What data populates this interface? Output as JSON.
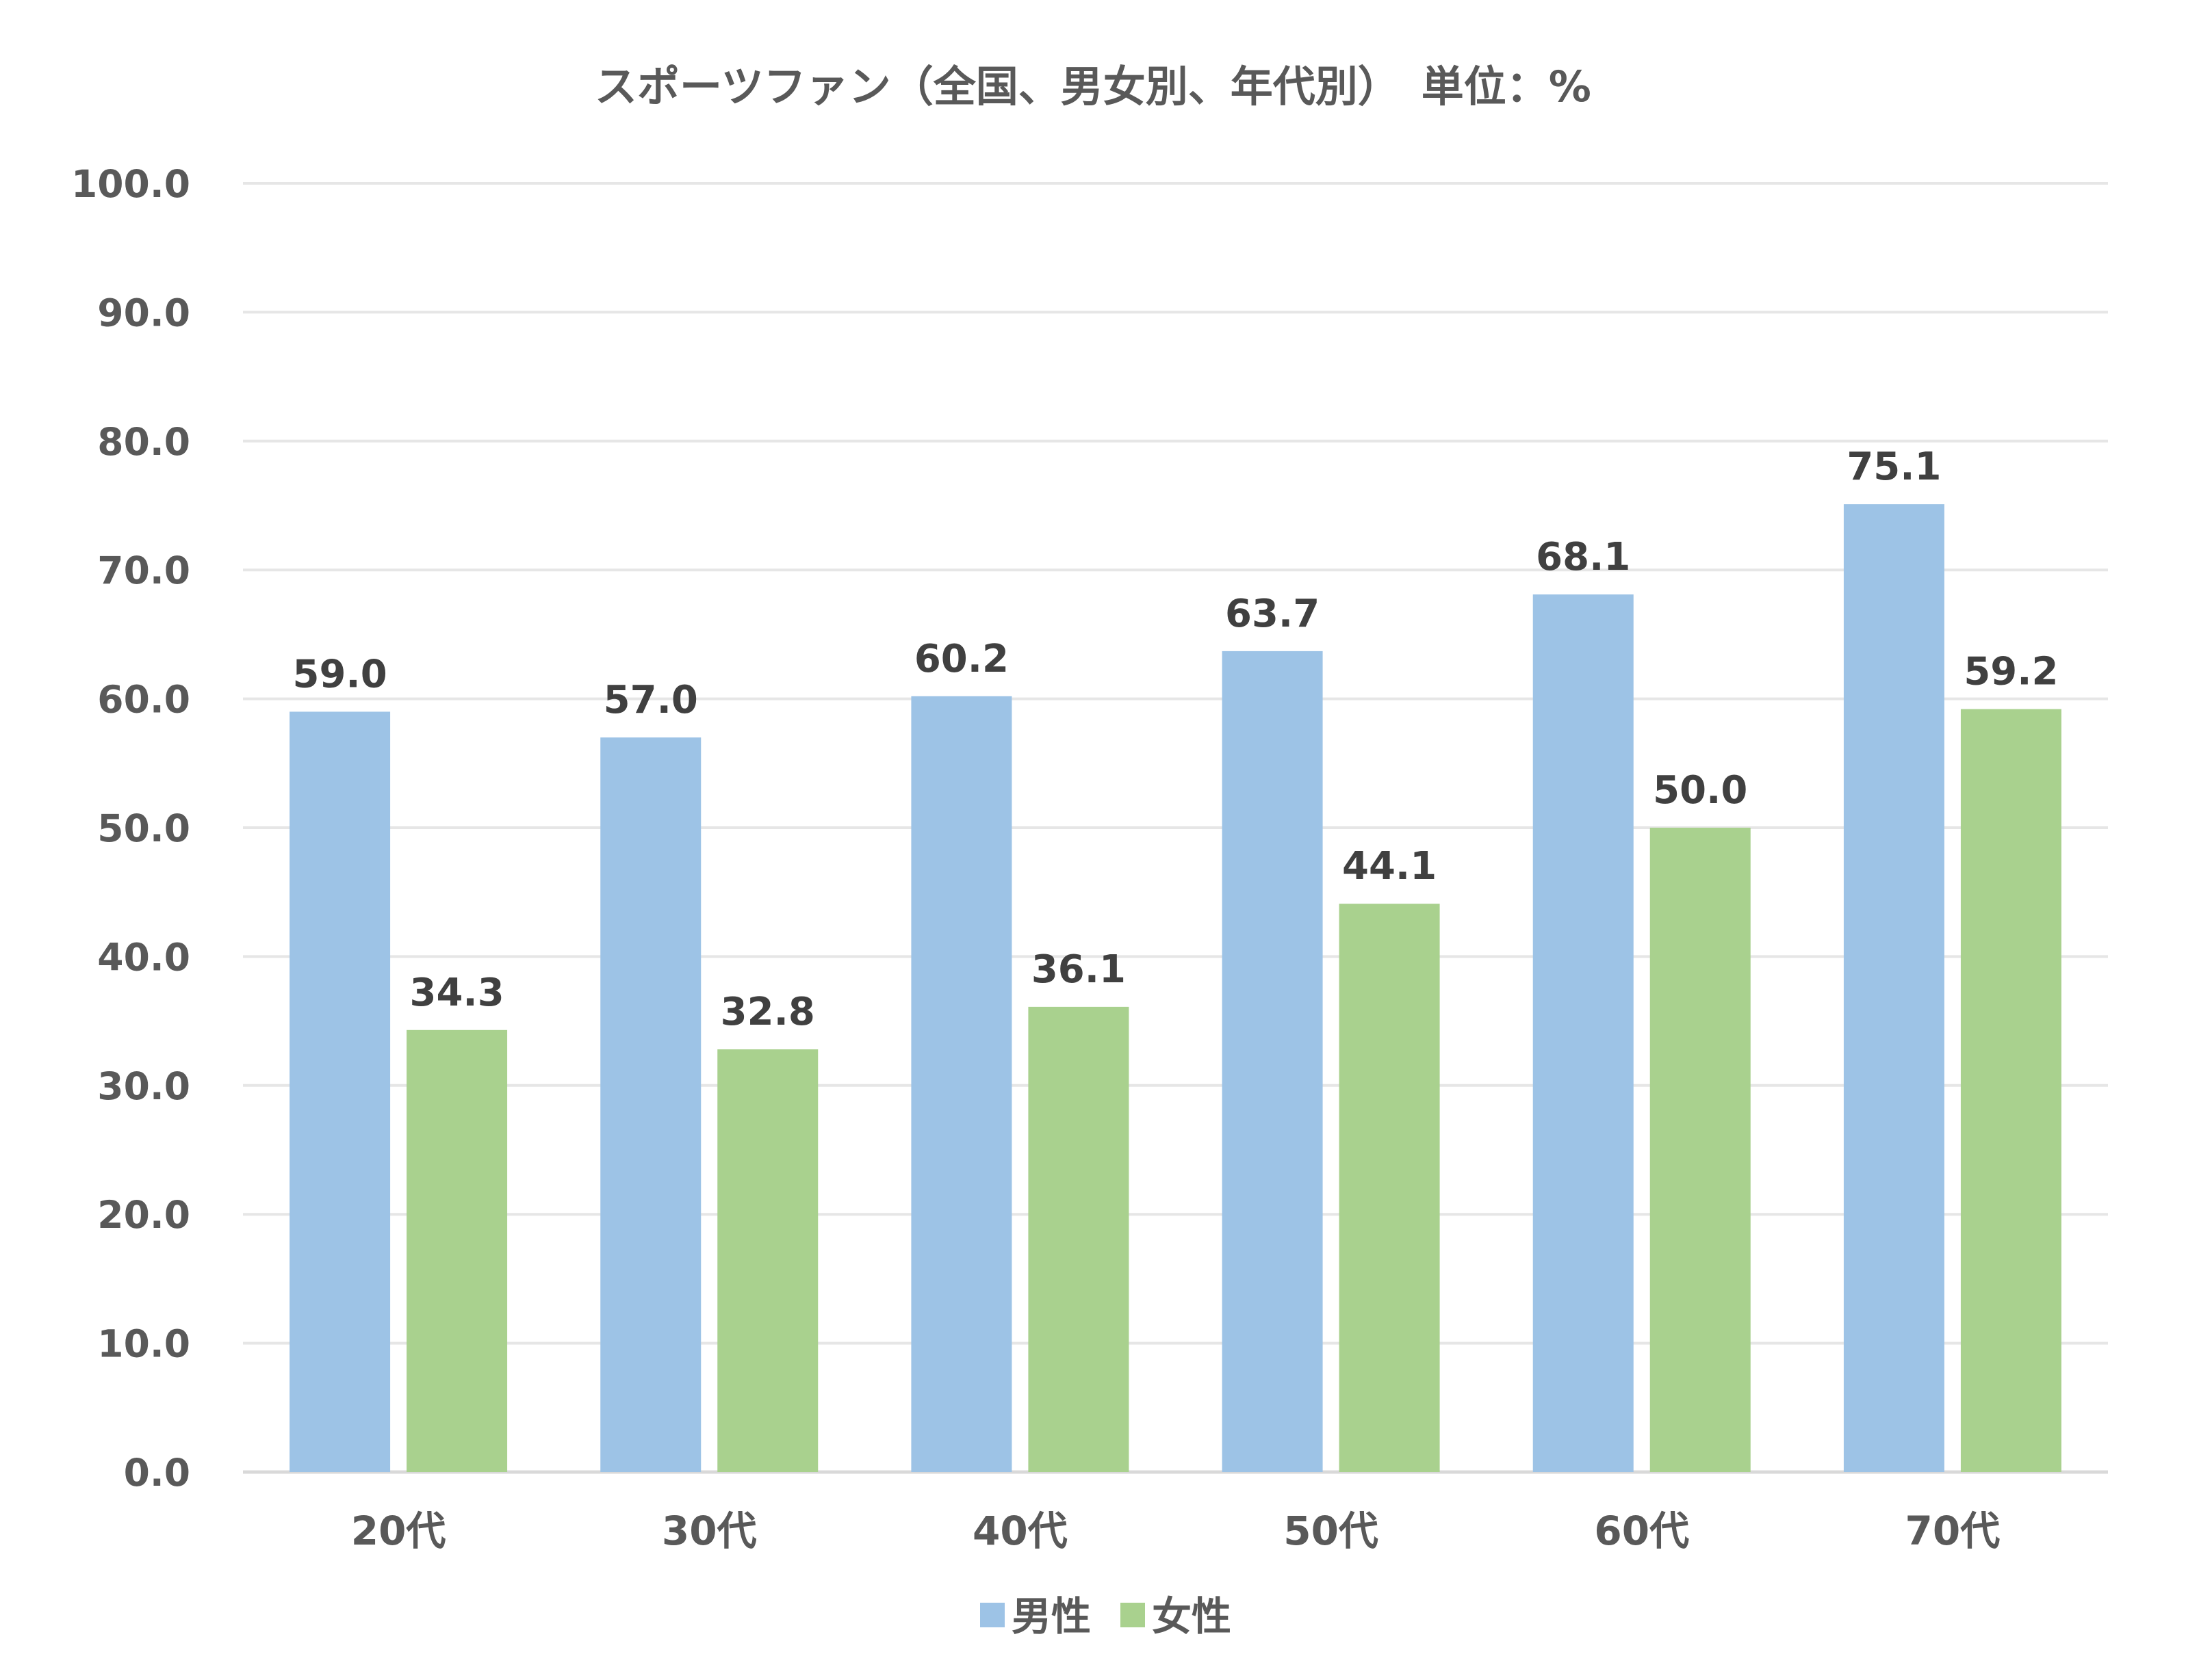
{
  "chart_data": {
    "type": "bar",
    "title": "スポーツファン（全国、男女別、年代別）　単位：%",
    "categories": [
      "20代",
      "30代",
      "40代",
      "50代",
      "60代",
      "70代"
    ],
    "series": [
      {
        "name": "男性",
        "color": "#9dc3e6",
        "values": [
          59.0,
          57.0,
          60.2,
          63.7,
          68.1,
          75.1
        ]
      },
      {
        "name": "女性",
        "color": "#a9d18e",
        "values": [
          34.3,
          32.8,
          36.1,
          44.1,
          50.0,
          59.2
        ]
      }
    ],
    "y_ticks": [
      "0.0",
      "10.0",
      "20.0",
      "30.0",
      "40.0",
      "50.0",
      "60.0",
      "70.0",
      "80.0",
      "90.0",
      "100.0"
    ],
    "ylim": [
      0,
      100
    ],
    "xlabel": "",
    "ylabel": "",
    "grid": true,
    "legend_position": "bottom"
  }
}
